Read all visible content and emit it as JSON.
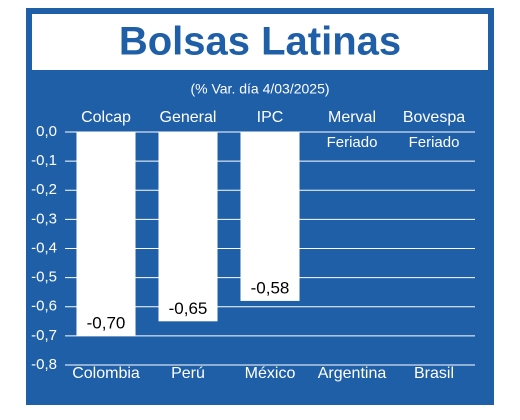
{
  "chart_data": {
    "type": "bar",
    "title": "Bolsas Latinas",
    "subtitle": "(% Var. día 4/03/2025)",
    "categories": [
      "Colombia",
      "Perú",
      "México",
      "Argentina",
      "Brasil"
    ],
    "index_names": [
      "Colcap",
      "General",
      "IPC",
      "Merval",
      "Bovespa"
    ],
    "notes": [
      null,
      null,
      null,
      "Feriado",
      "Feriado"
    ],
    "values": [
      -0.7,
      -0.65,
      -0.58,
      null,
      null
    ],
    "value_labels": [
      "-0,70",
      "-0,65",
      "-0,58",
      null,
      null
    ],
    "color": "#ffffff",
    "ylim": [
      -0.8,
      0
    ],
    "yticks": [
      {
        "value": 0,
        "label": "0,0"
      },
      {
        "value": -0.1,
        "label": "-0,1"
      },
      {
        "value": -0.2,
        "label": "-0,2"
      },
      {
        "value": -0.3,
        "label": "-0,3"
      },
      {
        "value": -0.4,
        "label": "-0,4"
      },
      {
        "value": -0.5,
        "label": "-0,5"
      },
      {
        "value": -0.6,
        "label": "-0,6"
      },
      {
        "value": -0.7,
        "label": "-0,7"
      },
      {
        "value": -0.8,
        "label": "-0,8"
      }
    ],
    "grid": true
  }
}
